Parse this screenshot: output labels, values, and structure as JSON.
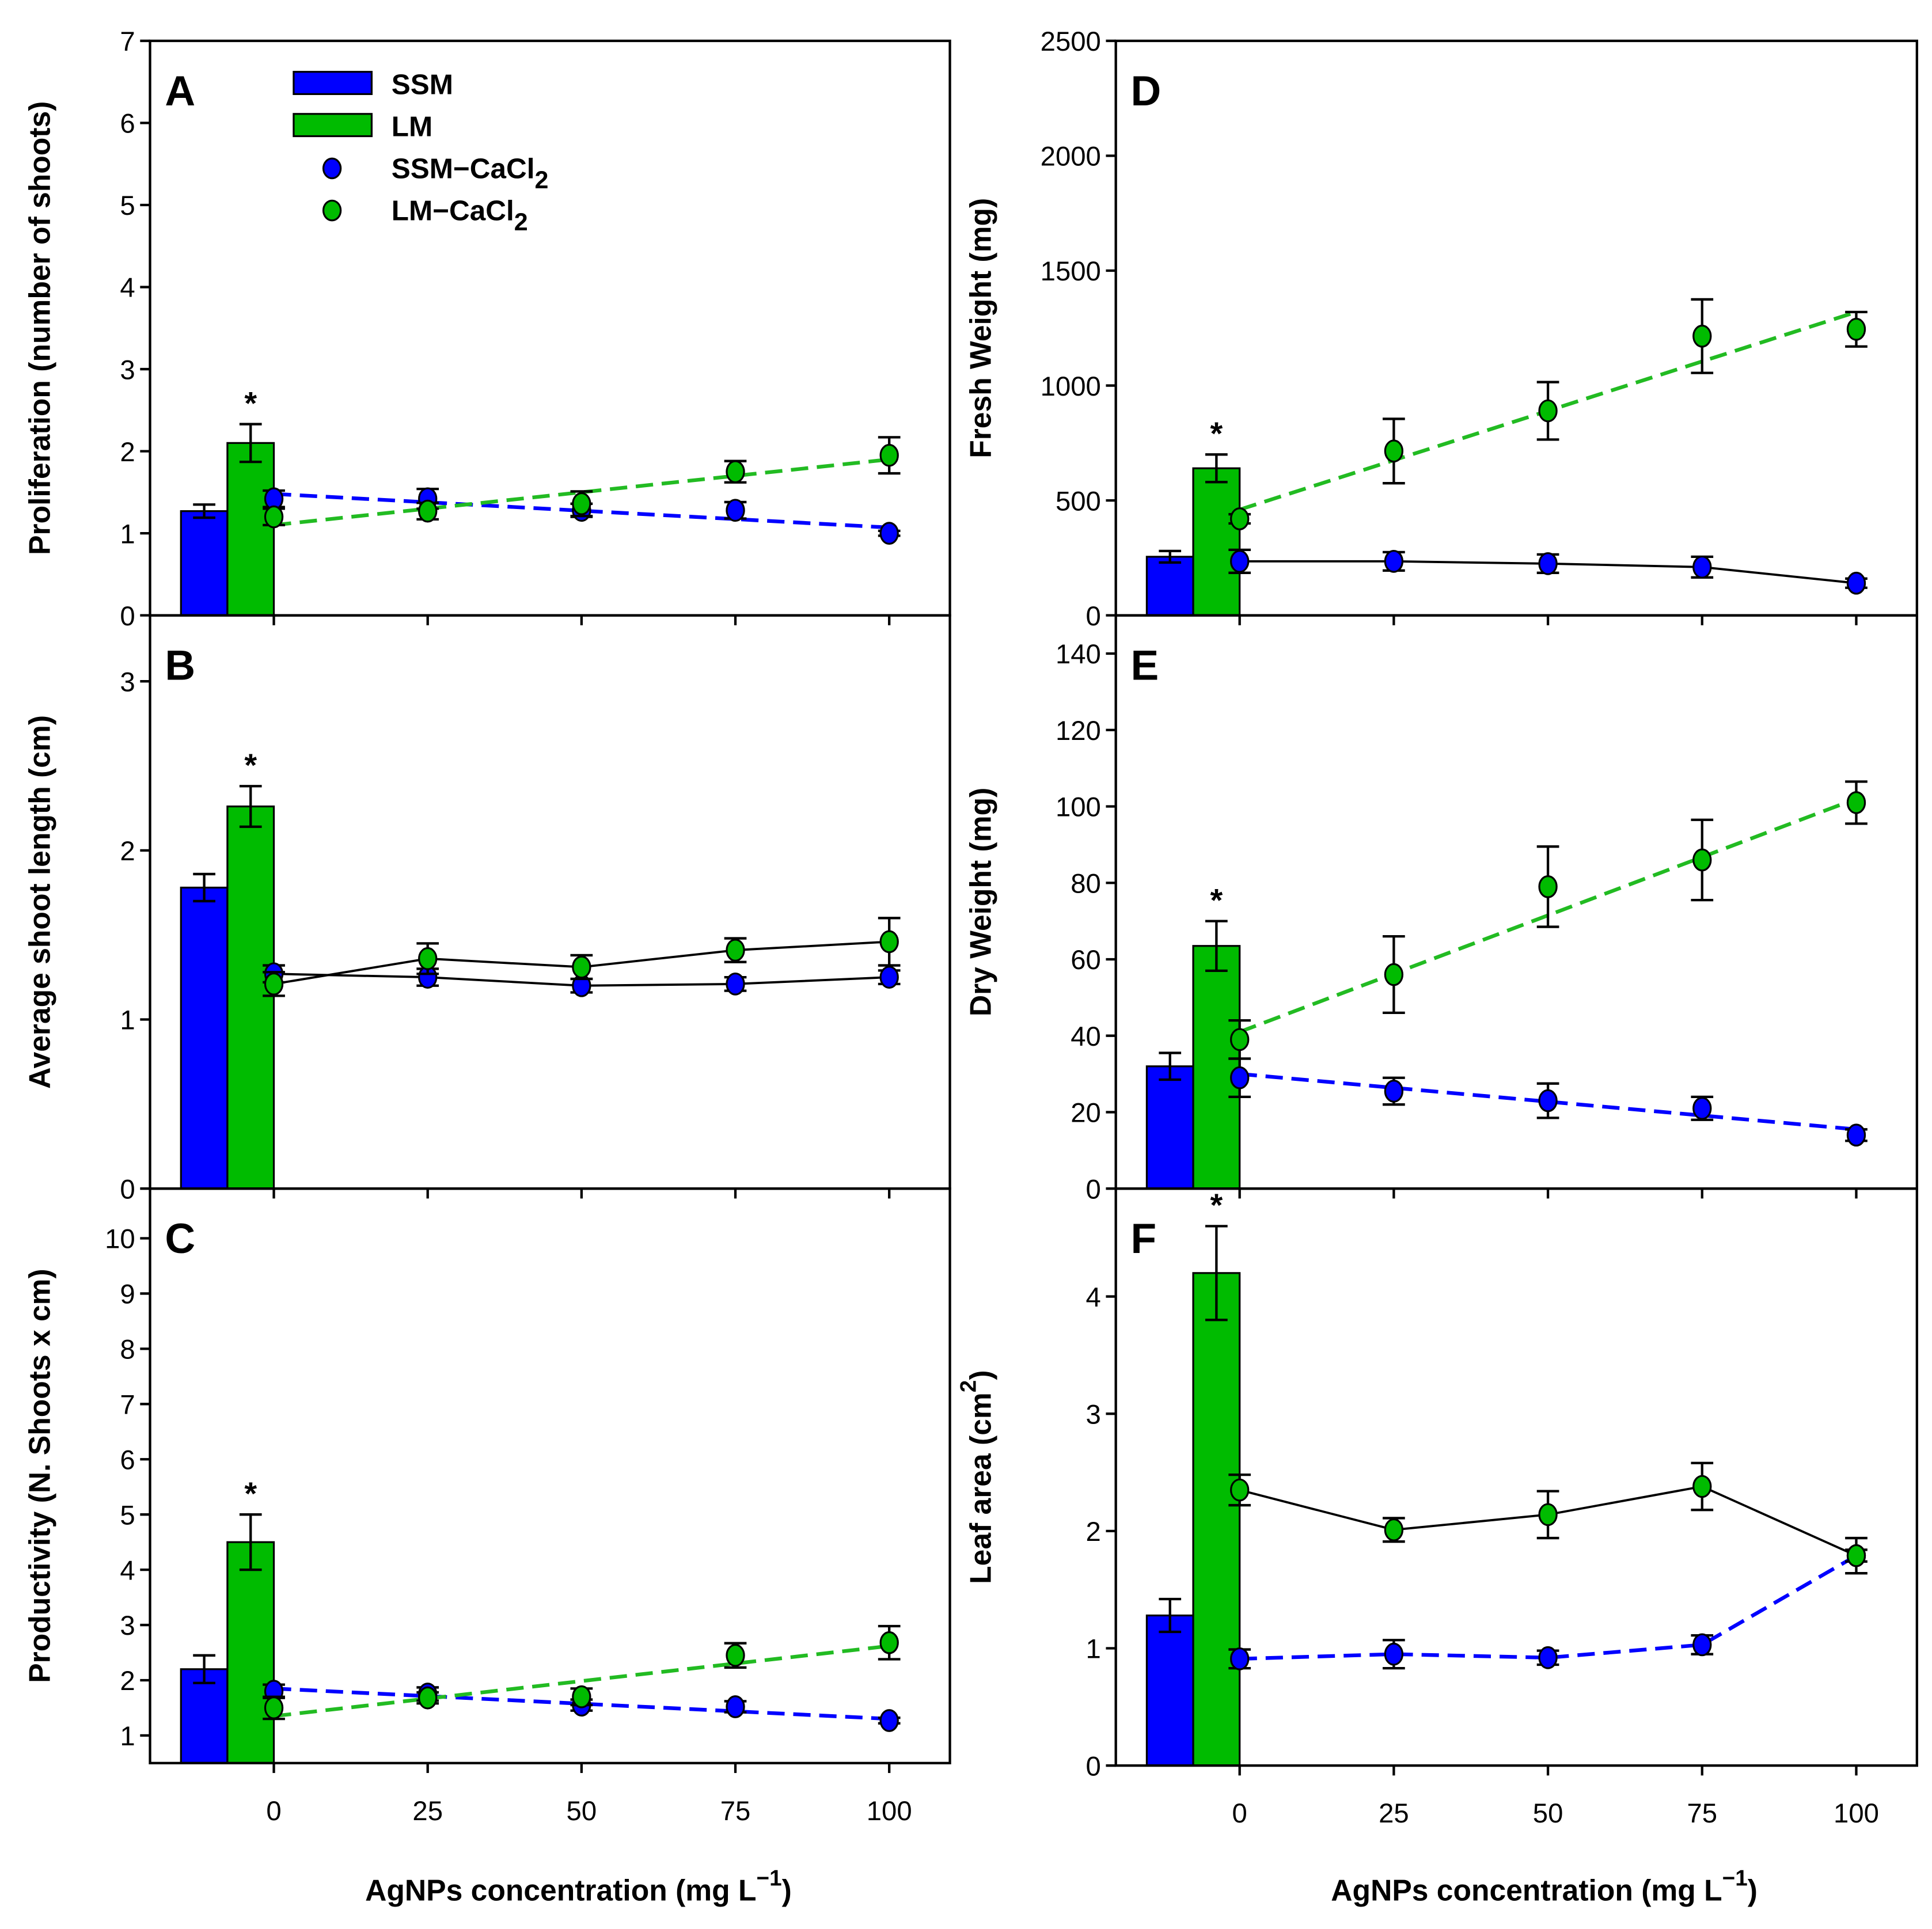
{
  "colors": {
    "ssm": "#0000ff",
    "lm": "#00bb00",
    "line": "#000000"
  },
  "legend": {
    "items": [
      {
        "label": "SSM",
        "kind": "bar",
        "color": "#0000ff"
      },
      {
        "label": "LM",
        "kind": "bar",
        "color": "#00bb00"
      },
      {
        "label": "SSM−CaCl",
        "sub": "2",
        "kind": "point",
        "color": "#0000ff"
      },
      {
        "label": "LM−CaCl",
        "sub": "2",
        "kind": "point",
        "color": "#00bb00"
      }
    ]
  },
  "xlabel": {
    "text": "AgNPs concentration (mg L",
    "sup": "−1",
    "close": ")"
  },
  "chart_data": [
    {
      "panel": "A",
      "type": "bar+scatter",
      "ylabel": "Proliferation (number of shoots)",
      "ylim": [
        0,
        7
      ],
      "yticks": [
        0,
        1,
        2,
        3,
        4,
        5,
        6,
        7
      ],
      "x": [
        0,
        25,
        50,
        75,
        100
      ],
      "xticks": [
        0,
        25,
        50,
        75,
        100
      ],
      "bars": [
        {
          "name": "SSM",
          "value": 1.27,
          "err": 0.08
        },
        {
          "name": "LM",
          "value": 2.1,
          "err": 0.23,
          "asterisk": "*"
        }
      ],
      "series": [
        {
          "name": "SSM-CaCl2",
          "color": "#0000ff",
          "y": [
            1.42,
            1.42,
            1.28,
            1.28,
            1.0
          ],
          "err": [
            0.1,
            0.12,
            0.08,
            0.1,
            0.03
          ],
          "line": "trend",
          "trend": [
            1.48,
            1.07
          ],
          "line_color": "#0000ff"
        },
        {
          "name": "LM-CaCl2",
          "color": "#00bb00",
          "y": [
            1.2,
            1.27,
            1.36,
            1.75,
            1.95
          ],
          "err": [
            0.1,
            0.1,
            0.15,
            0.13,
            0.22
          ],
          "line": "trend",
          "trend": [
            1.1,
            1.9
          ],
          "line_color": "#22bb22"
        }
      ]
    },
    {
      "panel": "B",
      "type": "bar+line",
      "ylabel": "Average shoot length (cm)",
      "ylim": [
        0,
        3.39
      ],
      "yticks": [
        0,
        1,
        2,
        3
      ],
      "x": [
        0,
        25,
        50,
        75,
        100
      ],
      "xticks": [
        0,
        25,
        50,
        75,
        100
      ],
      "bars": [
        {
          "name": "SSM",
          "value": 1.78,
          "err": 0.08
        },
        {
          "name": "LM",
          "value": 2.26,
          "err": 0.12,
          "asterisk": "*"
        }
      ],
      "series": [
        {
          "name": "SSM-CaCl2",
          "color": "#0000ff",
          "y": [
            1.27,
            1.25,
            1.2,
            1.21,
            1.25
          ],
          "err": [
            0.05,
            0.05,
            0.04,
            0.04,
            0.04
          ],
          "line": "connect",
          "line_color": "#000000"
        },
        {
          "name": "LM-CaCl2",
          "color": "#00bb00",
          "y": [
            1.21,
            1.36,
            1.31,
            1.41,
            1.46
          ],
          "err": [
            0.07,
            0.09,
            0.07,
            0.07,
            0.14
          ],
          "line": "connect",
          "line_color": "#000000"
        }
      ]
    },
    {
      "panel": "C",
      "type": "bar+scatter",
      "ylabel": "Productivity (N. Shoots x cm)",
      "ylim": [
        0.5,
        10.9
      ],
      "yticks": [
        1,
        2,
        3,
        4,
        5,
        6,
        7,
        8,
        9,
        10
      ],
      "x": [
        0,
        25,
        50,
        75,
        100
      ],
      "xticks": [
        0,
        25,
        50,
        75,
        100
      ],
      "bars": [
        {
          "name": "SSM",
          "value": 2.2,
          "err": 0.25
        },
        {
          "name": "LM",
          "value": 4.5,
          "err": 0.5,
          "asterisk": "*"
        }
      ],
      "series": [
        {
          "name": "SSM-CaCl2",
          "color": "#0000ff",
          "y": [
            1.8,
            1.75,
            1.55,
            1.52,
            1.27
          ],
          "err": [
            0.12,
            0.12,
            0.1,
            0.1,
            0.05
          ],
          "line": "trend",
          "trend": [
            1.85,
            1.3
          ],
          "line_color": "#0000ff"
        },
        {
          "name": "LM-CaCl2",
          "color": "#00bb00",
          "y": [
            1.5,
            1.68,
            1.7,
            2.45,
            2.68
          ],
          "err": [
            0.2,
            0.1,
            0.15,
            0.22,
            0.3
          ],
          "line": "trend",
          "trend": [
            1.35,
            2.62
          ],
          "line_color": "#22bb22"
        }
      ]
    },
    {
      "panel": "D",
      "type": "bar+scatter",
      "ylabel": "Fresh Weight (mg)",
      "ylim": [
        0,
        2500
      ],
      "yticks": [
        0,
        500,
        1000,
        1500,
        2000,
        2500
      ],
      "x": [
        0,
        25,
        50,
        75,
        100
      ],
      "xticks": [
        0,
        25,
        50,
        75,
        100
      ],
      "bars": [
        {
          "name": "SSM",
          "value": 255,
          "err": 25
        },
        {
          "name": "LM",
          "value": 640,
          "err": 60,
          "asterisk": "*"
        }
      ],
      "series": [
        {
          "name": "SSM-CaCl2",
          "color": "#0000ff",
          "y": [
            235,
            235,
            225,
            210,
            140
          ],
          "err": [
            50,
            40,
            40,
            45,
            20
          ],
          "line": "connect",
          "line_color": "#000000"
        },
        {
          "name": "LM-CaCl2",
          "color": "#00bb00",
          "y": [
            420,
            715,
            890,
            1215,
            1245
          ],
          "err": [
            20,
            140,
            125,
            160,
            75
          ],
          "line": "trend",
          "trend": [
            460,
            1320
          ],
          "line_color": "#22bb22"
        }
      ]
    },
    {
      "panel": "E",
      "type": "bar+scatter",
      "ylabel": "Dry Weight (mg)",
      "ylim": [
        0,
        150
      ],
      "yticks": [
        0,
        20,
        40,
        60,
        80,
        100,
        120,
        140
      ],
      "x": [
        0,
        25,
        50,
        75,
        100
      ],
      "xticks": [
        0,
        25,
        50,
        75,
        100
      ],
      "bars": [
        {
          "name": "SSM",
          "value": 32,
          "err": 3.5
        },
        {
          "name": "LM",
          "value": 63.5,
          "err": 6.5,
          "asterisk": "*"
        }
      ],
      "series": [
        {
          "name": "SSM-CaCl2",
          "color": "#0000ff",
          "y": [
            29,
            25.5,
            23,
            21,
            14
          ],
          "err": [
            5,
            3.5,
            4.5,
            3,
            1.5
          ],
          "line": "trend",
          "trend": [
            30,
            15.5
          ],
          "line_color": "#0000ff"
        },
        {
          "name": "LM-CaCl2",
          "color": "#00bb00",
          "y": [
            39,
            56,
            79,
            86,
            101
          ],
          "err": [
            5,
            10,
            10.5,
            10.5,
            5.5
          ],
          "line": "trend",
          "trend": [
            41,
            102
          ],
          "line_color": "#22bb22"
        }
      ]
    },
    {
      "panel": "F",
      "type": "bar+line",
      "ylabel": "Leaf area (cm",
      "ylabel_sup": "2",
      "ylabel_close": ")",
      "ylim": [
        0,
        4.92
      ],
      "yticks": [
        0,
        1,
        2,
        3,
        4
      ],
      "x": [
        0,
        25,
        50,
        75,
        100
      ],
      "xticks": [
        0,
        25,
        50,
        75,
        100
      ],
      "bars": [
        {
          "name": "SSM",
          "value": 1.28,
          "err": 0.14
        },
        {
          "name": "LM",
          "value": 4.2,
          "err": 0.4,
          "asterisk": "*"
        }
      ],
      "series": [
        {
          "name": "SSM-CaCl2",
          "color": "#0000ff",
          "y": [
            0.91,
            0.95,
            0.92,
            1.03,
            1.79
          ],
          "err": [
            0.08,
            0.12,
            0.06,
            0.08,
            0.05
          ],
          "line": "dashed-connect",
          "line_color": "#0000ff"
        },
        {
          "name": "LM-CaCl2",
          "color": "#00bb00",
          "y": [
            2.35,
            2.01,
            2.14,
            2.38,
            1.79
          ],
          "err": [
            0.13,
            0.1,
            0.2,
            0.2,
            0.15
          ],
          "line": "connect",
          "line_color": "#000000"
        }
      ]
    }
  ]
}
